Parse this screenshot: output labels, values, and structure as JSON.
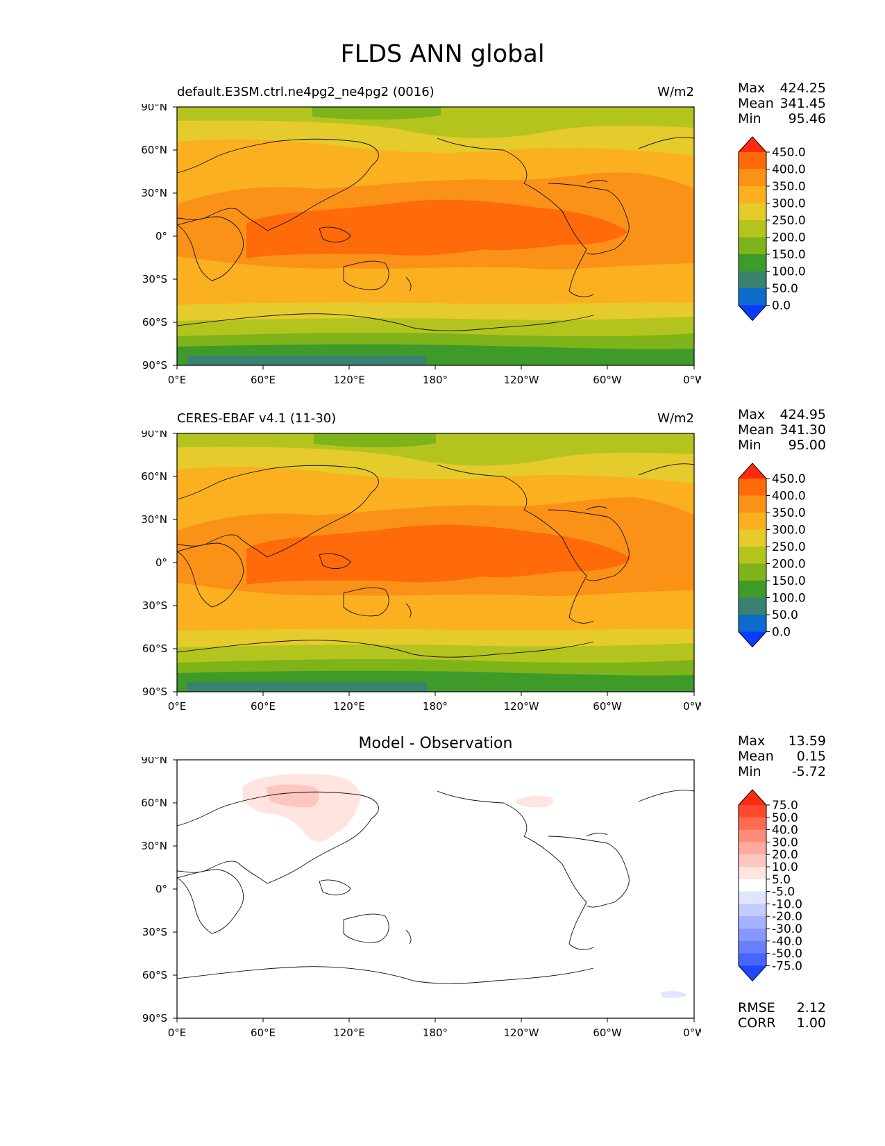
{
  "figure": {
    "title": "FLDS ANN global",
    "x_ticks": [
      "0°E",
      "60°E",
      "120°E",
      "180°",
      "120°W",
      "60°W",
      "0°W"
    ],
    "y_ticks": [
      "90°N",
      "60°N",
      "30°N",
      "0°",
      "30°S",
      "60°S",
      "90°S"
    ]
  },
  "panels": [
    {
      "title_left": "default.E3SM.ctrl.ne4pg2_ne4pg2 (0016)",
      "units": "W/m2",
      "stats": [
        {
          "label": "Max",
          "value": "424.25"
        },
        {
          "label": "Mean",
          "value": "341.45"
        },
        {
          "label": "Min",
          "value": "95.46"
        }
      ],
      "colorbar": {
        "labels": [
          "450.0",
          "400.0",
          "350.0",
          "300.0",
          "250.0",
          "200.0",
          "150.0",
          "100.0",
          "50.0",
          "0.0"
        ],
        "colors": [
          "#ff2a10",
          "#ff6a0a",
          "#fb9218",
          "#fbb11f",
          "#e5cb2b",
          "#b4c41f",
          "#7eb31a",
          "#3e9b2a",
          "#3a8270",
          "#0d6bcc",
          "#0b3bff"
        ]
      }
    },
    {
      "title_left": "CERES-EBAF v4.1 (11-30)",
      "units": "W/m2",
      "stats": [
        {
          "label": "Max",
          "value": "424.95"
        },
        {
          "label": "Mean",
          "value": "341.30"
        },
        {
          "label": "Min",
          "value": "95.00"
        }
      ],
      "colorbar": {
        "labels": [
          "450.0",
          "400.0",
          "350.0",
          "300.0",
          "250.0",
          "200.0",
          "150.0",
          "100.0",
          "50.0",
          "0.0"
        ],
        "colors": [
          "#ff2a10",
          "#ff6a0a",
          "#fb9218",
          "#fbb11f",
          "#e5cb2b",
          "#b4c41f",
          "#7eb31a",
          "#3e9b2a",
          "#3a8270",
          "#0d6bcc",
          "#0b3bff"
        ]
      }
    },
    {
      "title_center": "Model - Observation",
      "stats": [
        {
          "label": "Max",
          "value": "13.59"
        },
        {
          "label": "Mean",
          "value": "0.15"
        },
        {
          "label": "Min",
          "value": "-5.72"
        }
      ],
      "colorbar": {
        "labels": [
          "75.0",
          "50.0",
          "40.0",
          "30.0",
          "20.0",
          "10.0",
          "5.0",
          "-5.0",
          "-10.0",
          "-20.0",
          "-30.0",
          "-40.0",
          "-50.0",
          "-75.0"
        ],
        "colors": [
          "#ff2a10",
          "#ff4a30",
          "#ff6a50",
          "#ff8c78",
          "#ffaaa0",
          "#ffc6c0",
          "#ffe4e0",
          "#ffffff",
          "#e0e6ff",
          "#c2ccff",
          "#a4b2ff",
          "#8698ff",
          "#6680ff",
          "#4866ff",
          "#1f45ff"
        ]
      },
      "metrics": [
        {
          "label": "RMSE",
          "value": "2.12"
        },
        {
          "label": "CORR",
          "value": "1.00"
        }
      ]
    }
  ]
}
